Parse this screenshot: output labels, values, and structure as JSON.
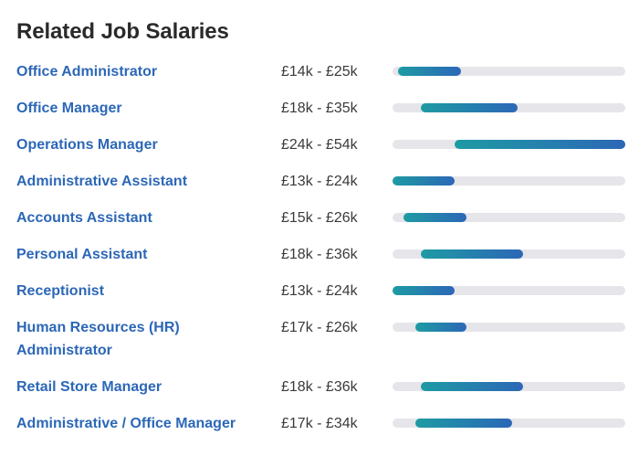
{
  "section": {
    "title": "Related Job Salaries"
  },
  "colors": {
    "title_text": "#2a2a2a",
    "link": "#2c67b7",
    "track": "#e6e6ea",
    "bar_start": "#1e9ba3",
    "bar_end": "#2c67b7"
  },
  "scale": {
    "min_k": 13,
    "max_k": 54
  },
  "jobs": [
    {
      "title": "Office Administrator",
      "range": "£14k - £25k",
      "min_k": 14,
      "max_k": 25
    },
    {
      "title": "Office Manager",
      "range": "£18k - £35k",
      "min_k": 18,
      "max_k": 35
    },
    {
      "title": "Operations Manager",
      "range": "£24k - £54k",
      "min_k": 24,
      "max_k": 54
    },
    {
      "title": "Administrative Assistant",
      "range": "£13k - £24k",
      "min_k": 13,
      "max_k": 24
    },
    {
      "title": "Accounts Assistant",
      "range": "£15k - £26k",
      "min_k": 15,
      "max_k": 26
    },
    {
      "title": "Personal Assistant",
      "range": "£18k - £36k",
      "min_k": 18,
      "max_k": 36
    },
    {
      "title": "Receptionist",
      "range": "£13k - £24k",
      "min_k": 13,
      "max_k": 24
    },
    {
      "title": "Human Resources (HR) Administrator",
      "range": "£17k - £26k",
      "min_k": 17,
      "max_k": 26
    },
    {
      "title": "Retail Store Manager",
      "range": "£18k - £36k",
      "min_k": 18,
      "max_k": 36
    },
    {
      "title": "Administrative / Office Manager",
      "range": "£17k - £34k",
      "min_k": 17,
      "max_k": 34
    }
  ]
}
